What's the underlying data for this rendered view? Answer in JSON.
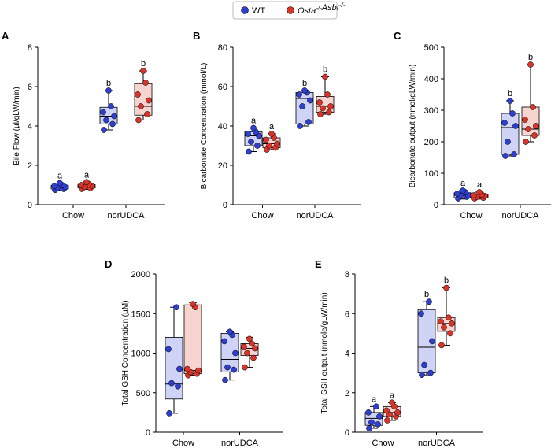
{
  "legend": [
    {
      "label": "WT",
      "color": "#2e3fcf",
      "fill": "#cfd3f5"
    },
    {
      "label": "Osta-/-Asbt-/-",
      "color": "#d8342a",
      "fill": "#f7d4cf"
    }
  ],
  "categories": [
    "Chow",
    "norUDCA"
  ],
  "chart_data": [
    {
      "id": "A",
      "type": "box",
      "panel_label": "A",
      "ylabel": "Bile Flow (µl/gLW/min)",
      "ylim": [
        0,
        8
      ],
      "yticks": [
        0,
        2,
        4,
        6,
        8
      ],
      "categories": [
        "Chow",
        "norUDCA"
      ],
      "series": [
        {
          "name": "WT",
          "groups": [
            {
              "category": "Chow",
              "points": [
                0.75,
                0.8,
                0.85,
                0.9,
                0.95,
                1.0,
                1.1
              ],
              "box": [
                0.72,
                0.8,
                0.88,
                0.98,
                1.1
              ],
              "letter": "a"
            },
            {
              "category": "norUDCA",
              "points": [
                3.8,
                4.1,
                4.3,
                4.5,
                4.7,
                5.0,
                5.8
              ],
              "box": [
                3.8,
                4.1,
                4.5,
                4.95,
                5.8
              ],
              "letter": "b"
            }
          ]
        },
        {
          "name": "Osta-/-Asbt-/-",
          "groups": [
            {
              "category": "Chow",
              "points": [
                0.8,
                0.85,
                0.9,
                0.95,
                1.0,
                1.05,
                1.15
              ],
              "box": [
                0.78,
                0.85,
                0.93,
                1.02,
                1.15
              ],
              "letter": "a"
            },
            {
              "category": "norUDCA",
              "points": [
                4.3,
                4.6,
                5.0,
                5.3,
                5.6,
                6.2,
                6.8
              ],
              "box": [
                4.3,
                4.55,
                5.0,
                6.15,
                6.8
              ],
              "letter": "b"
            }
          ]
        }
      ]
    },
    {
      "id": "B",
      "type": "box",
      "panel_label": "B",
      "ylabel": "Bicarbonate Concentration (mmol/L)",
      "ylim": [
        0,
        80
      ],
      "yticks": [
        0,
        20,
        40,
        60,
        80
      ],
      "categories": [
        "Chow",
        "norUDCA"
      ],
      "series": [
        {
          "name": "WT",
          "groups": [
            {
              "category": "Chow",
              "points": [
                27,
                30,
                32,
                35,
                36,
                37,
                39
              ],
              "box": [
                27,
                30,
                35,
                37,
                39
              ],
              "letter": "a"
            },
            {
              "category": "norUDCA",
              "points": [
                40,
                42,
                50,
                53,
                56,
                57,
                58
              ],
              "box": [
                40,
                41,
                54,
                57,
                58
              ],
              "letter": "b"
            }
          ]
        },
        {
          "name": "Osta-/-Asbt-/-",
          "groups": [
            {
              "category": "Chow",
              "points": [
                28,
                29,
                30,
                31,
                33,
                34,
                36
              ],
              "box": [
                28,
                29,
                31,
                34,
                36
              ],
              "letter": "a"
            },
            {
              "category": "norUDCA",
              "points": [
                46,
                47,
                49,
                50,
                52,
                56,
                65
              ],
              "box": [
                46,
                47,
                50,
                55,
                65
              ],
              "letter": "b"
            }
          ]
        }
      ]
    },
    {
      "id": "C",
      "type": "box",
      "panel_label": "C",
      "ylabel": "Bicarbonate output (nmol/gLW/min)",
      "ylim": [
        0,
        500
      ],
      "yticks": [
        0,
        100,
        200,
        300,
        400,
        500
      ],
      "categories": [
        "Chow",
        "norUDCA"
      ],
      "series": [
        {
          "name": "WT",
          "groups": [
            {
              "category": "Chow",
              "points": [
                20,
                25,
                28,
                30,
                35,
                40,
                45
              ],
              "box": [
                18,
                22,
                30,
                38,
                45
              ],
              "letter": "a"
            },
            {
              "category": "norUDCA",
              "points": [
                155,
                160,
                200,
                250,
                260,
                290,
                330
              ],
              "box": [
                155,
                160,
                245,
                290,
                330
              ],
              "letter": "b"
            }
          ]
        },
        {
          "name": "Osta-/-Asbt-/-",
          "groups": [
            {
              "category": "Chow",
              "points": [
                20,
                22,
                25,
                28,
                30,
                32,
                40
              ],
              "box": [
                18,
                22,
                28,
                34,
                40
              ],
              "letter": "a"
            },
            {
              "category": "norUDCA",
              "points": [
                200,
                220,
                240,
                250,
                270,
                310,
                445
              ],
              "box": [
                200,
                220,
                240,
                310,
                445
              ],
              "letter": "b"
            }
          ]
        }
      ]
    },
    {
      "id": "D",
      "type": "box",
      "panel_label": "D",
      "ylabel": "Total GSH Concentration (µM)",
      "ylim": [
        0,
        2000
      ],
      "yticks": [
        0,
        500,
        1000,
        1500,
        2000
      ],
      "categories": [
        "Chow",
        "norUDCA"
      ],
      "series": [
        {
          "name": "WT",
          "groups": [
            {
              "category": "Chow",
              "points": [
                240,
                580,
                620,
                800,
                1050,
                1580
              ],
              "box": [
                240,
                420,
                610,
                1200,
                1580
              ],
              "letter": ""
            },
            {
              "category": "norUDCA",
              "points": [
                660,
                790,
                820,
                1000,
                1150,
                1230,
                1270
              ],
              "box": [
                660,
                760,
                920,
                1250,
                1270
              ],
              "letter": ""
            }
          ]
        },
        {
          "name": "Osta-/-Asbt-/-",
          "groups": [
            {
              "category": "Chow",
              "points": [
                720,
                740,
                760,
                780,
                800,
                1580,
                1620
              ],
              "box": [
                720,
                740,
                780,
                1610,
                1640
              ],
              "letter": ""
            },
            {
              "category": "norUDCA",
              "points": [
                820,
                940,
                1000,
                1060,
                1080,
                1120,
                1180
              ],
              "box": [
                820,
                970,
                1060,
                1120,
                1200
              ],
              "letter": ""
            }
          ]
        }
      ]
    },
    {
      "id": "E",
      "type": "box",
      "panel_label": "E",
      "ylabel": "Total GSH output (nmole/gLW/min)",
      "ylim": [
        0,
        8
      ],
      "yticks": [
        0,
        2,
        4,
        6,
        8
      ],
      "categories": [
        "Chow",
        "norUDCA"
      ],
      "series": [
        {
          "name": "WT",
          "groups": [
            {
              "category": "Chow",
              "points": [
                0.2,
                0.4,
                0.5,
                0.8,
                1.0,
                1.3
              ],
              "box": [
                0.2,
                0.35,
                0.7,
                1.0,
                1.3
              ],
              "letter": "a"
            },
            {
              "category": "norUDCA",
              "points": [
                2.9,
                3.0,
                3.4,
                4.6,
                6.0,
                6.6
              ],
              "box": [
                2.9,
                3.0,
                4.3,
                6.2,
                6.6
              ],
              "letter": "b"
            }
          ]
        },
        {
          "name": "Osta-/-Asbt-/-",
          "groups": [
            {
              "category": "Chow",
              "points": [
                0.6,
                0.8,
                0.9,
                1.0,
                1.1,
                1.3,
                1.5
              ],
              "box": [
                0.6,
                0.8,
                1.0,
                1.3,
                1.5
              ],
              "letter": "a"
            },
            {
              "category": "norUDCA",
              "points": [
                4.4,
                5.0,
                5.3,
                5.5,
                5.6,
                5.8,
                7.3
              ],
              "box": [
                4.4,
                5.1,
                5.5,
                5.8,
                7.3
              ],
              "letter": "b"
            }
          ]
        }
      ]
    }
  ]
}
